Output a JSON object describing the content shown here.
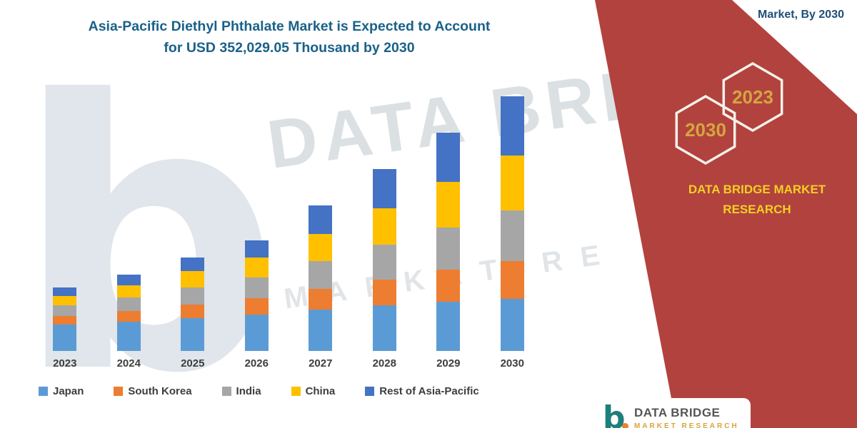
{
  "header": {
    "title_line1": "Asia-Pacific Diethyl Phthalate Market is Expected to Account",
    "title_line2": "for USD 352,029.05 Thousand by 2030",
    "top_right_caption": "Market, By 2030"
  },
  "side_panel": {
    "hexagons": [
      {
        "label": "2030"
      },
      {
        "label": "2023"
      }
    ],
    "brand_line1": "DATA BRIDGE MARKET",
    "brand_line2": "RESEARCH",
    "colors": {
      "panel_red": "#B2423E",
      "brand_yellow": "#F2D024",
      "hex_year_gold": "#D4A63F",
      "hex_outline": "#F4F1EA"
    }
  },
  "watermark": {
    "big_glyph": "b",
    "text_line1": "DATA BRIDGE",
    "text_line2": "MARKET RE"
  },
  "footer_logo": {
    "glyph": "b",
    "name": "DATA BRIDGE",
    "tagline": "MARKET RESEARCH"
  },
  "chart_data": {
    "type": "bar",
    "stacked": true,
    "title": "Asia-Pacific Diethyl Phthalate Market is Expected to Account for USD 352,029.05 Thousand by 2030",
    "unit": "USD Thousand",
    "categories": [
      "2023",
      "2024",
      "2025",
      "2026",
      "2027",
      "2028",
      "2029",
      "2030"
    ],
    "series": [
      {
        "name": "Japan",
        "color": "#5B9BD5",
        "values": [
          36000,
          40000,
          45000,
          50000,
          57000,
          63000,
          68000,
          72000
        ]
      },
      {
        "name": "South Korea",
        "color": "#ED7D31",
        "values": [
          12000,
          15000,
          19000,
          23000,
          29000,
          36000,
          44000,
          52000
        ]
      },
      {
        "name": "India",
        "color": "#A6A6A6",
        "values": [
          15000,
          19000,
          24000,
          29000,
          38000,
          48000,
          59000,
          70000
        ]
      },
      {
        "name": "China",
        "color": "#FFC000",
        "values": [
          13000,
          17000,
          22000,
          27000,
          38000,
          50000,
          63000,
          76000
        ]
      },
      {
        "name": "Rest of Asia-Pacific",
        "color": "#4472C4",
        "values": [
          12000,
          15000,
          19000,
          24000,
          39000,
          54000,
          68000,
          82029.05
        ]
      }
    ],
    "total_2030_labeled": 352029.05,
    "values_estimated": true,
    "legend_position": "bottom",
    "grid": false,
    "xlabel": "",
    "ylabel": "",
    "ylim": [
      0,
      360000
    ]
  }
}
